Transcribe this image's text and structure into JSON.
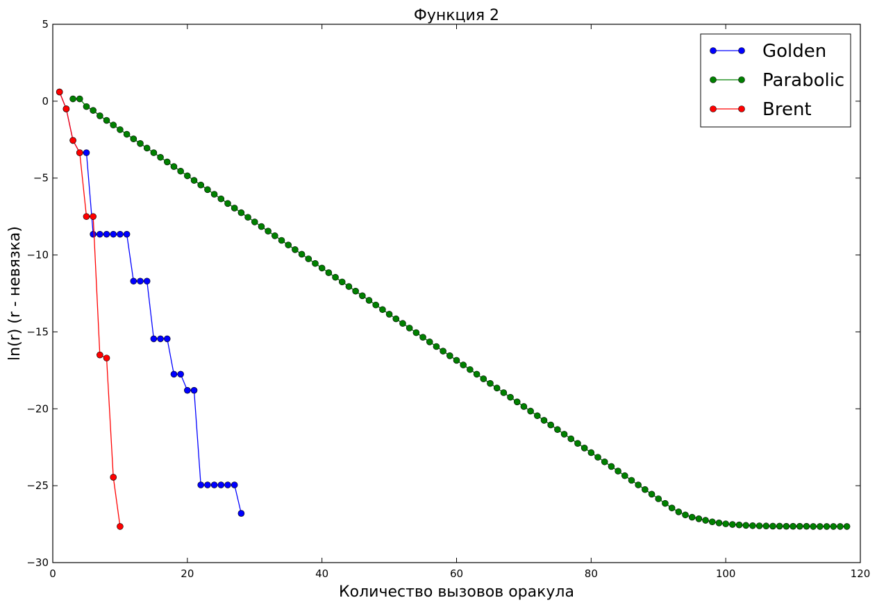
{
  "chart_data": {
    "type": "line",
    "title": "Функция 2",
    "xlabel": "Количество вызовов оракула",
    "ylabel": "ln(r) (r - невязка)",
    "xlim": [
      0,
      120
    ],
    "ylim": [
      -30,
      5
    ],
    "xticks": [
      0,
      20,
      40,
      60,
      80,
      100,
      120
    ],
    "yticks": [
      5,
      0,
      -5,
      -10,
      -15,
      -20,
      -25,
      -30
    ],
    "grid": false,
    "legend_position": "top-right",
    "series": [
      {
        "name": "Golden",
        "color": "#0000ff",
        "x": [
          1,
          2,
          3,
          4,
          5,
          6,
          7,
          8,
          9,
          10,
          11,
          12,
          13,
          14,
          15,
          16,
          17,
          18,
          19,
          20,
          21,
          22,
          23,
          24,
          25,
          26,
          27,
          28
        ],
        "y": [
          0.6,
          -0.5,
          -2.55,
          -3.35,
          -3.35,
          -8.65,
          -8.65,
          -8.65,
          -8.65,
          -8.65,
          -8.65,
          -11.7,
          -11.7,
          -11.7,
          -15.45,
          -15.45,
          -15.45,
          -17.75,
          -17.75,
          -18.8,
          -18.8,
          -24.95,
          -24.95,
          -24.95,
          -24.95,
          -24.95,
          -24.95,
          -26.8
        ]
      },
      {
        "name": "Parabolic",
        "color": "#008000",
        "x": [
          3,
          4,
          5,
          6,
          7,
          8,
          9,
          10,
          11,
          12,
          13,
          14,
          15,
          16,
          17,
          18,
          19,
          20,
          21,
          22,
          23,
          24,
          25,
          26,
          27,
          28,
          29,
          30,
          31,
          32,
          33,
          34,
          35,
          36,
          37,
          38,
          39,
          40,
          41,
          42,
          43,
          44,
          45,
          46,
          47,
          48,
          49,
          50,
          51,
          52,
          53,
          54,
          55,
          56,
          57,
          58,
          59,
          60,
          61,
          62,
          63,
          64,
          65,
          66,
          67,
          68,
          69,
          70,
          71,
          72,
          73,
          74,
          75,
          76,
          77,
          78,
          79,
          80,
          81,
          82,
          83,
          84,
          85,
          86,
          87,
          88,
          89,
          90,
          91,
          92,
          93,
          94,
          95,
          96,
          97,
          98,
          99,
          100,
          101,
          102,
          103,
          104,
          105,
          106,
          107,
          108,
          109,
          110,
          111,
          112,
          113,
          114,
          115,
          116,
          117,
          118
        ],
        "y": [
          0.15,
          0.15,
          -0.35,
          -0.6,
          -0.95,
          -1.25,
          -1.55,
          -1.85,
          -2.15,
          -2.45,
          -2.75,
          -3.05,
          -3.35,
          -3.65,
          -3.95,
          -4.25,
          -4.55,
          -4.85,
          -5.15,
          -5.45,
          -5.75,
          -6.05,
          -6.35,
          -6.65,
          -6.95,
          -7.25,
          -7.55,
          -7.85,
          -8.15,
          -8.45,
          -8.75,
          -9.05,
          -9.35,
          -9.65,
          -9.95,
          -10.25,
          -10.55,
          -10.85,
          -11.15,
          -11.45,
          -11.75,
          -12.05,
          -12.35,
          -12.65,
          -12.95,
          -13.25,
          -13.55,
          -13.85,
          -14.15,
          -14.45,
          -14.75,
          -15.05,
          -15.35,
          -15.65,
          -15.95,
          -16.25,
          -16.55,
          -16.85,
          -17.15,
          -17.45,
          -17.75,
          -18.05,
          -18.35,
          -18.65,
          -18.95,
          -19.25,
          -19.55,
          -19.85,
          -20.15,
          -20.45,
          -20.75,
          -21.05,
          -21.35,
          -21.65,
          -21.95,
          -22.25,
          -22.55,
          -22.85,
          -23.15,
          -23.45,
          -23.75,
          -24.05,
          -24.35,
          -24.65,
          -24.95,
          -25.25,
          -25.55,
          -25.85,
          -26.15,
          -26.45,
          -26.7,
          -26.9,
          -27.05,
          -27.15,
          -27.25,
          -27.35,
          -27.42,
          -27.48,
          -27.52,
          -27.55,
          -27.58,
          -27.6,
          -27.61,
          -27.62,
          -27.63,
          -27.63,
          -27.64,
          -27.64,
          -27.64,
          -27.64,
          -27.65,
          -27.65,
          -27.65,
          -27.65,
          -27.65,
          -27.65
        ]
      },
      {
        "name": "Brent",
        "color": "#ff0000",
        "x": [
          1,
          2,
          3,
          4,
          5,
          6,
          7,
          8,
          9,
          10
        ],
        "y": [
          0.6,
          -0.5,
          -2.55,
          -3.35,
          -7.5,
          -7.5,
          -16.5,
          -16.7,
          -24.45,
          -27.65
        ]
      }
    ]
  }
}
